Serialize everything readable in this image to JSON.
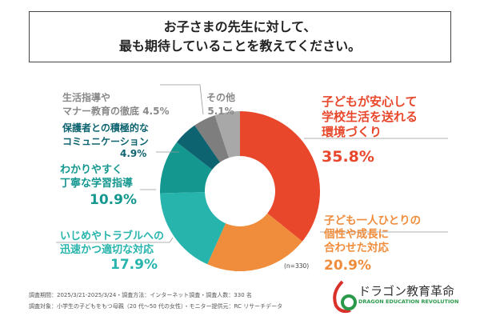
{
  "title": {
    "line1": "お子さまの先生に対して、",
    "line2": "最も期待していることを教えてください。"
  },
  "chart_data": {
    "type": "pie",
    "donut": true,
    "n_label": "(n=330)",
    "slices": [
      {
        "label": "子どもが安心して学校生活を送れる環境づくり",
        "value": 35.8,
        "value_label": "35.8%",
        "color": "#e8472b"
      },
      {
        "label": "子ども一人ひとりの個性や成長に合わせた対応",
        "value": 20.9,
        "value_label": "20.9%",
        "color": "#f08d3c"
      },
      {
        "label": "いじめやトラブルへの迅速かつ適切な対応",
        "value": 17.9,
        "value_label": "17.9%",
        "color": "#27b4ac"
      },
      {
        "label": "わかりやすく丁寧な学習指導",
        "value": 10.9,
        "value_label": "10.9%",
        "color": "#14978f"
      },
      {
        "label": "保護者との積極的なコミュニケーション",
        "value": 4.9,
        "value_label": "4.9%",
        "color": "#0d6370"
      },
      {
        "label": "生活指導やマナー教育の徹底",
        "value": 4.5,
        "value_label": "4.5%",
        "color": "#7e7e7e"
      },
      {
        "label": "その他",
        "value": 5.1,
        "value_label": "5.1%",
        "color": "#a8a8a8"
      }
    ],
    "label_lines": {
      "s0": [
        "子どもが安心して",
        "学校生活を送れる",
        "環境づくり"
      ],
      "s1": [
        "子ども一人ひとりの",
        "個性や成長に",
        "合わせた対応"
      ],
      "s2": [
        "いじめやトラブルへの",
        "迅速かつ適切な対応"
      ],
      "s3": [
        "わかりやすく",
        "丁寧な学習指導"
      ],
      "s4": [
        "保護者との積極的な",
        "コミュニケーション"
      ],
      "s5": [
        "生活指導や",
        "マナー教育の徹底"
      ],
      "s6": [
        "その他"
      ]
    }
  },
  "footer": {
    "line1": "調査期間：2025/3/21-2025/3/24・調査方法：インターネット調査・調査人数：330 名",
    "line2": "調査対象：小学生の子どもをもつ母親（20 代～50 代の女性）・モニター提供元：RC リサーチデータ"
  },
  "logo": {
    "name": "ドラゴン教育革命",
    "sub": "DRAGON EDUCATION REVOLUTION"
  }
}
